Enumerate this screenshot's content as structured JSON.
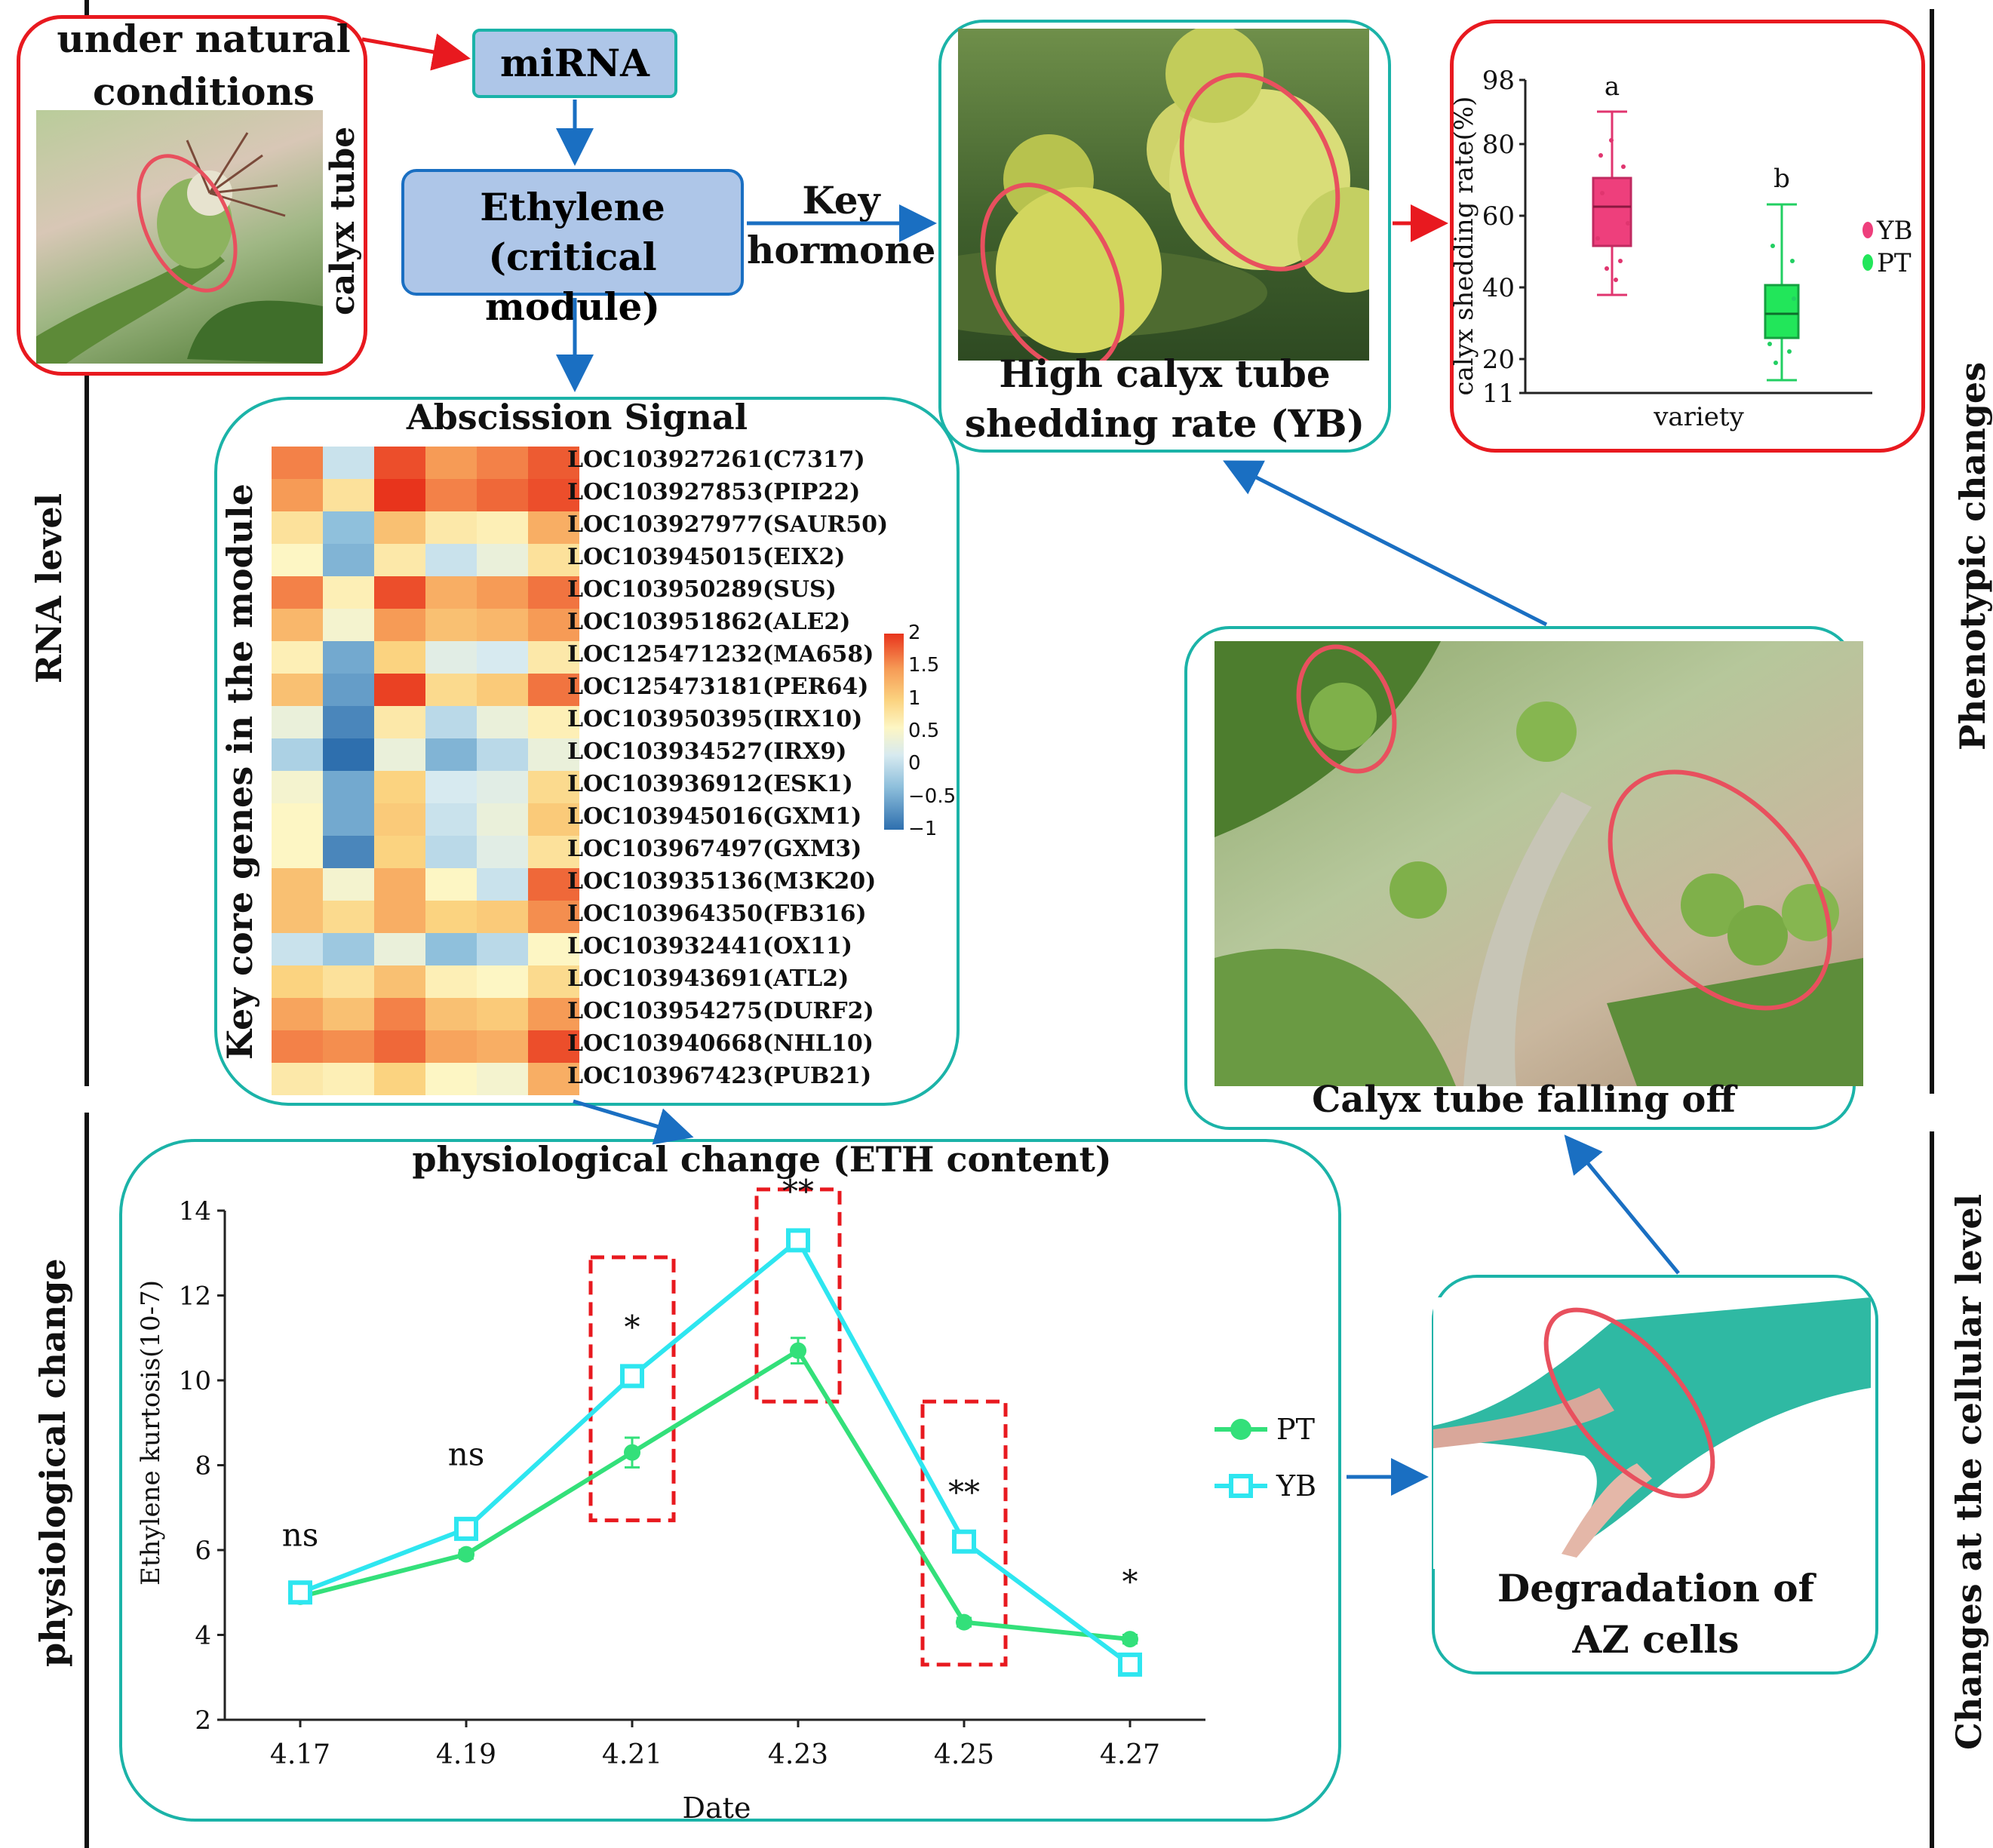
{
  "side_labels": {
    "rna_level": "RNA level",
    "physiological_change": "physiological change",
    "phenotypic_changes": "Phenotypic changes",
    "cellular_level": "Changes at the cellular level"
  },
  "natural": {
    "title_line1": "under natural",
    "title_line2": "conditions",
    "vertical_label": "calyx tube"
  },
  "flow": {
    "mirna": "miRNA",
    "ethylene_line1": "Ethylene",
    "ethylene_line2": "(critical module)",
    "key_line1": "Key",
    "key_line2": "hormone"
  },
  "fruit_photo": {
    "caption_line1": "High calyx tube",
    "caption_line2": "shedding rate (YB)"
  },
  "boxplot": {
    "ylabel": "calyx shedding rate(%)",
    "xlabel": "variety",
    "ytick_labels": [
      "98",
      "80",
      "60",
      "40",
      "20",
      "11"
    ],
    "letter_yb": "a",
    "letter_pt": "b",
    "legend_yb": "YB",
    "legend_pt": "PT"
  },
  "heatmap": {
    "title": "Abscission Signal",
    "ylabel": "Key core genes in the module",
    "genes": [
      "LOC103927261(C7317)",
      "LOC103927853(PIP22)",
      "LOC103927977(SAUR50)",
      "LOC103945015(EIX2)",
      "LOC103950289(SUS)",
      "LOC103951862(ALE2)",
      "LOC125471232(MA658)",
      "LOC125473181(PER64)",
      "LOC103950395(IRX10)",
      "LOC103934527(IRX9)",
      "LOC103936912(ESK1)",
      "LOC103945016(GXM1)",
      "LOC103967497(GXM3)",
      "LOC103935136(M3K20)",
      "LOC103964350(FB316)",
      "LOC103932441(OX11)",
      "LOC103943691(ATL2)",
      "LOC103954275(DURF2)",
      "LOC103940668(NHL10)",
      "LOC103967423(PUB21)"
    ],
    "values": [
      [
        1.6,
        -0.2,
        2.0,
        1.4,
        1.6,
        1.9
      ],
      [
        1.4,
        0.6,
        2.3,
        1.6,
        1.8,
        2.0
      ],
      [
        0.6,
        -0.6,
        1.0,
        0.5,
        0.4,
        1.2
      ],
      [
        0.3,
        -0.7,
        0.5,
        -0.2,
        0.1,
        0.6
      ],
      [
        1.6,
        0.4,
        2.0,
        1.2,
        1.4,
        1.7
      ],
      [
        1.1,
        0.2,
        1.4,
        1.0,
        1.1,
        1.4
      ],
      [
        0.4,
        -0.8,
        0.8,
        0.0,
        -0.1,
        0.5
      ],
      [
        1.0,
        -0.9,
        2.1,
        0.7,
        0.9,
        1.7
      ],
      [
        0.1,
        -1.1,
        0.5,
        -0.3,
        0.1,
        0.4
      ],
      [
        -0.4,
        -1.3,
        0.1,
        -0.7,
        -0.3,
        0.1
      ],
      [
        0.2,
        -0.8,
        0.8,
        -0.1,
        0.0,
        0.7
      ],
      [
        0.3,
        -0.8,
        0.9,
        -0.2,
        0.1,
        0.9
      ],
      [
        0.3,
        -1.1,
        0.8,
        -0.3,
        0.0,
        0.6
      ],
      [
        1.0,
        0.2,
        1.2,
        0.3,
        -0.2,
        1.8
      ],
      [
        1.0,
        0.7,
        1.2,
        0.8,
        0.9,
        1.5
      ],
      [
        -0.2,
        -0.5,
        0.1,
        -0.6,
        -0.3,
        0.3
      ],
      [
        0.8,
        0.6,
        1.0,
        0.4,
        0.3,
        0.7
      ],
      [
        1.3,
        1.0,
        1.6,
        1.0,
        0.9,
        1.4
      ],
      [
        1.6,
        1.5,
        1.8,
        1.3,
        1.2,
        2.0
      ],
      [
        0.5,
        0.4,
        0.8,
        0.3,
        0.2,
        1.2
      ]
    ],
    "colorbar_ticks": [
      "2",
      "1.5",
      "1",
      "0.5",
      "0",
      "−0.5",
      "−1"
    ]
  },
  "chart_data": {
    "type": "line",
    "title": "physiological change (ETH content)",
    "xlabel": "Date",
    "ylabel": "Ethylene kurtosis(10-7)",
    "categories": [
      "4.17",
      "4.19",
      "4.21",
      "4.23",
      "4.25",
      "4.27"
    ],
    "ylim": [
      2,
      14
    ],
    "yticks": [
      "2",
      "4",
      "6",
      "8",
      "10",
      "12",
      "14"
    ],
    "series": [
      {
        "name": "PT",
        "values": [
          4.9,
          5.9,
          8.3,
          10.7,
          4.3,
          3.9
        ],
        "errors": [
          0.1,
          0.1,
          0.35,
          0.3,
          0.1,
          0.1
        ],
        "color": "#33e07a",
        "marker": "circle"
      },
      {
        "name": "YB",
        "values": [
          5.0,
          6.5,
          10.1,
          13.3,
          6.2,
          3.3
        ],
        "errors": [
          0.1,
          0.15,
          0.2,
          0.2,
          0.15,
          0.1
        ],
        "color": "#2ee6f0",
        "marker": "square"
      }
    ],
    "significance": [
      "ns",
      "ns",
      "*",
      "**",
      "**",
      "*"
    ]
  },
  "photo_captions": {
    "falling": "Calyx tube falling off",
    "az_line1": "Degradation of",
    "az_line2": "AZ cells"
  },
  "colors": {
    "red_border": "#e8191f",
    "teal_border": "#1bb3a8",
    "blue_arrow": "#1a6fc2",
    "node_fill": "#aec6e8"
  }
}
